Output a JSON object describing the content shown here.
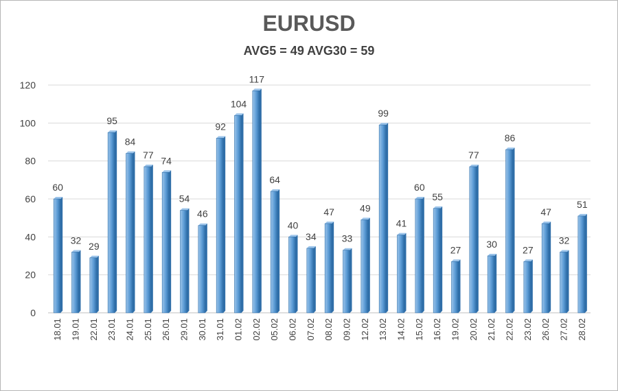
{
  "chart_data": {
    "type": "bar",
    "title": "EURUSD",
    "subtitle": "AVG5 = 49 AVG30 = 59",
    "xlabel": "",
    "ylabel": "",
    "ylim": [
      0,
      120
    ],
    "yticks": [
      0,
      20,
      40,
      60,
      80,
      100,
      120
    ],
    "grid": true,
    "categories": [
      "18.01",
      "19.01",
      "22.01",
      "23.01",
      "24.01",
      "25.01",
      "26.01",
      "29.01",
      "30.01",
      "31.01",
      "01.02",
      "02.02",
      "05.02",
      "06.02",
      "07.02",
      "08.02",
      "09.02",
      "12.02",
      "13.02",
      "14.02",
      "15.02",
      "16.02",
      "19.02",
      "20.02",
      "21.02",
      "22.02",
      "23.02",
      "26.02",
      "27.02",
      "28.02"
    ],
    "values": [
      60,
      32,
      29,
      95,
      84,
      77,
      74,
      54,
      46,
      92,
      104,
      117,
      64,
      40,
      34,
      47,
      33,
      49,
      99,
      41,
      60,
      55,
      27,
      77,
      30,
      86,
      27,
      47,
      32,
      51
    ],
    "colors": {
      "bar": "#5b9bd5",
      "bar_dark": "#2f6ea8",
      "bar_light": "#9cc4ea",
      "grid": "#d9d9d9",
      "text": "#404040"
    }
  }
}
